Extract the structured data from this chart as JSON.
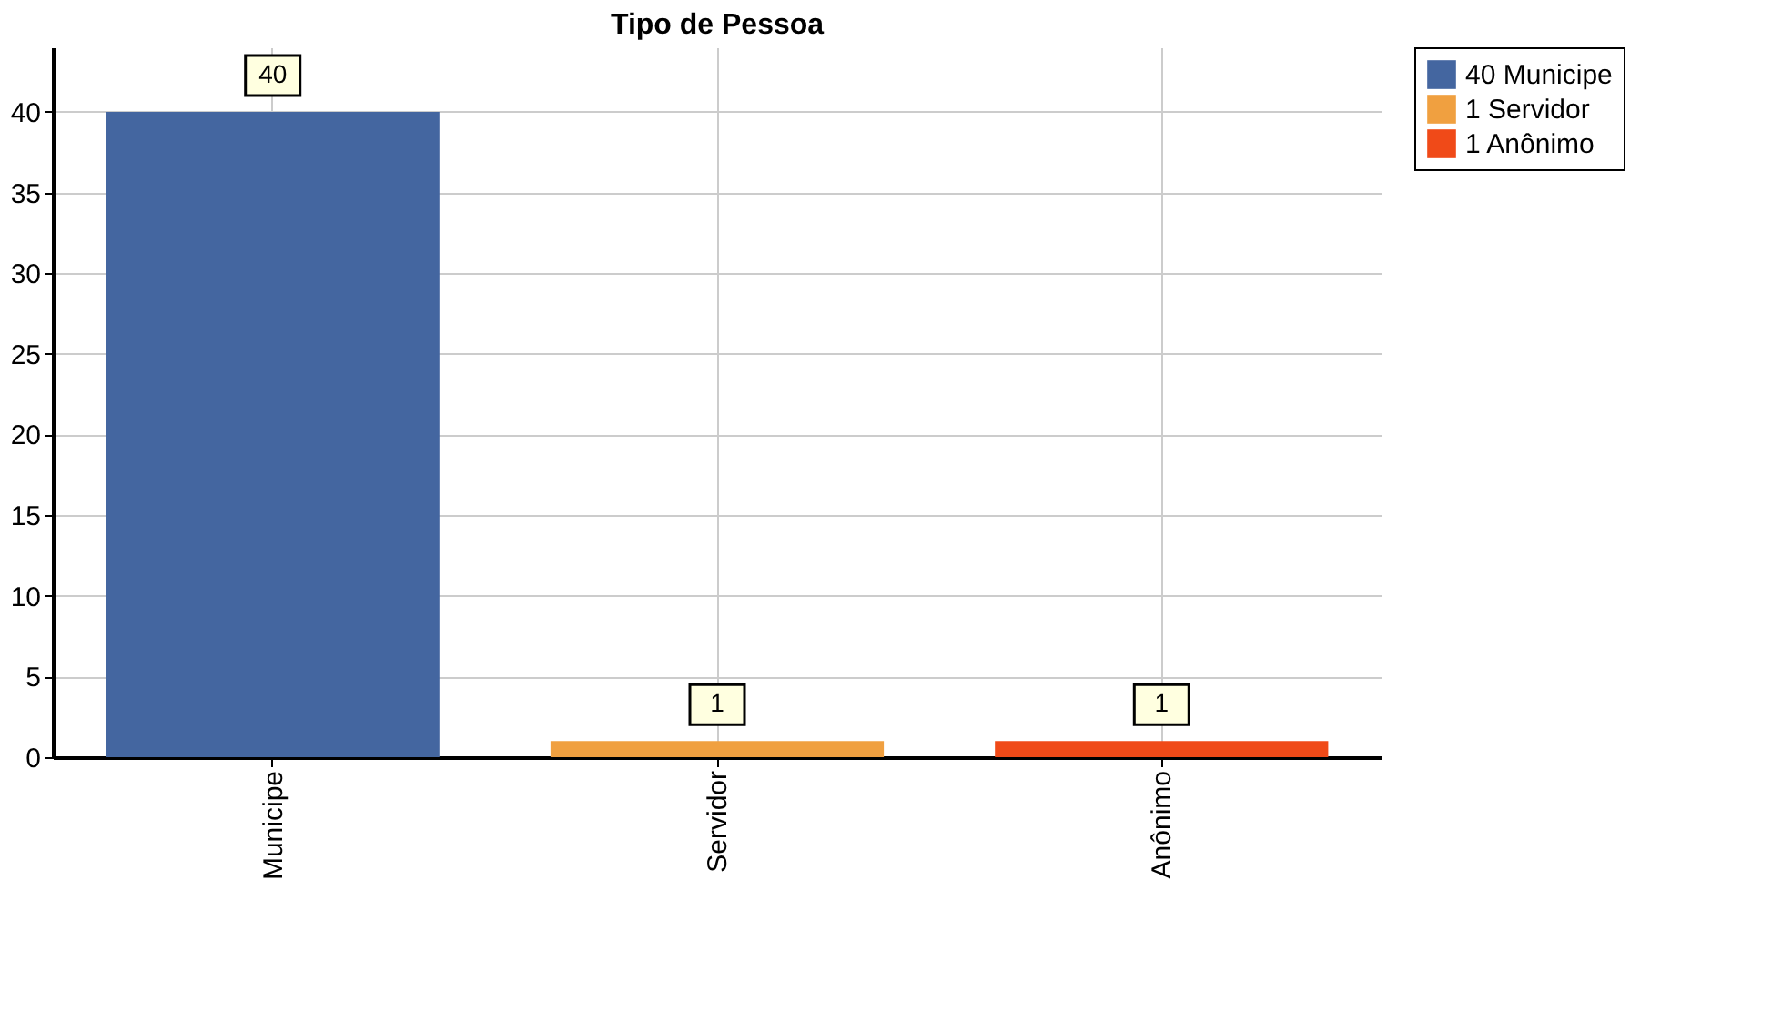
{
  "chart_data": {
    "type": "bar",
    "title": "Tipo de Pessoa",
    "categories": [
      "Municipe",
      "Servidor",
      "Anônimo"
    ],
    "series": [
      {
        "name": "40 Municipe",
        "color": "#4466a0",
        "values": [
          40,
          null,
          null
        ]
      },
      {
        "name": "1 Servidor",
        "color": "#f0a040",
        "values": [
          null,
          1,
          null
        ]
      },
      {
        "name": "1 Anônimo",
        "color": "#f04a18",
        "values": [
          null,
          null,
          1
        ]
      }
    ],
    "ylim": [
      0,
      44
    ],
    "yticks": [
      0,
      5,
      10,
      15,
      20,
      25,
      30,
      35,
      40
    ],
    "grid": true,
    "legend": "top right",
    "data_labels": true
  }
}
